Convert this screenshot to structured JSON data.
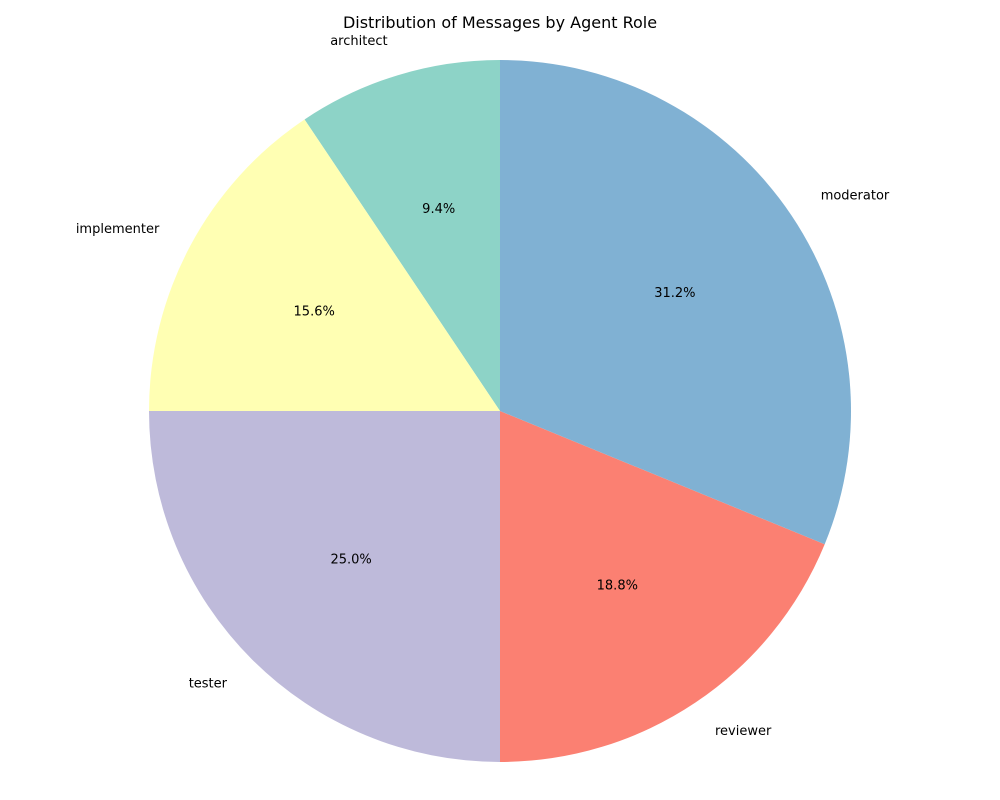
{
  "chart_data": {
    "type": "pie",
    "title": "Distribution of Messages by Agent Role",
    "start_angle_deg": 90,
    "direction": "counterclockwise",
    "slices": [
      {
        "label": "architect",
        "value": 9.4,
        "pct_label": "9.4%",
        "color": "#8dd3c7"
      },
      {
        "label": "implementer",
        "value": 15.6,
        "pct_label": "15.6%",
        "color": "#ffffb3"
      },
      {
        "label": "tester",
        "value": 25.0,
        "pct_label": "25.0%",
        "color": "#bebada"
      },
      {
        "label": "reviewer",
        "value": 18.8,
        "pct_label": "18.8%",
        "color": "#fb8072"
      },
      {
        "label": "moderator",
        "value": 31.2,
        "pct_label": "31.2%",
        "color": "#80b1d3"
      }
    ]
  }
}
